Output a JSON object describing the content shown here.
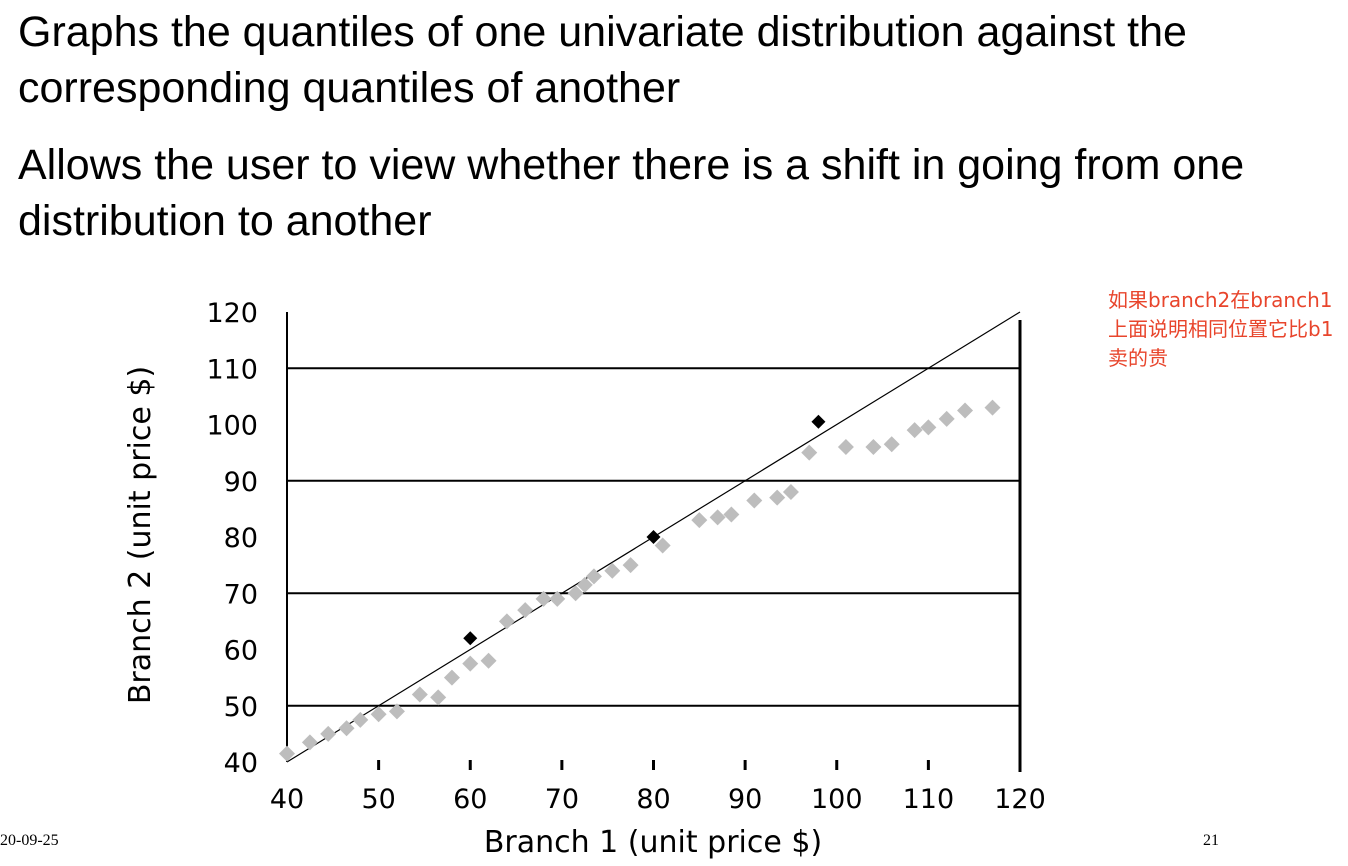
{
  "slide": {
    "bullets": [
      "Graphs the quantiles of one univariate distribution against the corresponding quantiles of another",
      "Allows the user to view whether there is a shift in going from one distribution to another"
    ],
    "annotation": "如果branch2在branch1上面说明相同位置它比b1卖的贵",
    "footer_date": "20-09-25",
    "page_number": "21"
  },
  "chart_data": {
    "type": "scatter",
    "xlabel": "Branch 1 (unit price $)",
    "ylabel": "Branch 2 (unit price $)",
    "xlim": [
      40,
      120
    ],
    "ylim": [
      40,
      120
    ],
    "x_ticks": [
      40,
      50,
      60,
      70,
      80,
      90,
      100,
      110,
      120
    ],
    "y_ticks": [
      40,
      50,
      60,
      70,
      80,
      90,
      100,
      110,
      120
    ],
    "grid": "horizontal",
    "reference_line": {
      "from": [
        40,
        40
      ],
      "to": [
        120,
        120
      ]
    },
    "series": [
      {
        "color": "#bdbdbd",
        "points": [
          [
            40,
            41.5
          ],
          [
            42.5,
            43.5
          ],
          [
            44.5,
            45
          ],
          [
            46.5,
            46
          ],
          [
            48,
            47.5
          ],
          [
            50,
            48.5
          ],
          [
            52,
            49
          ],
          [
            54.5,
            52
          ],
          [
            56.5,
            51.5
          ],
          [
            58,
            55
          ],
          [
            60,
            57.5
          ],
          [
            62,
            58
          ],
          [
            64,
            65
          ],
          [
            66,
            67
          ],
          [
            68,
            69
          ],
          [
            69.5,
            69
          ],
          [
            71.5,
            70
          ],
          [
            72.5,
            71.5
          ],
          [
            73.5,
            73
          ],
          [
            75.5,
            74
          ],
          [
            77.5,
            75
          ],
          [
            81,
            78.5
          ],
          [
            85,
            83
          ],
          [
            87,
            83.5
          ],
          [
            88.5,
            84
          ],
          [
            91,
            86.5
          ],
          [
            93.5,
            87
          ],
          [
            95,
            88
          ],
          [
            97,
            95
          ],
          [
            101,
            96
          ],
          [
            104,
            96
          ],
          [
            106,
            96.5
          ],
          [
            108.5,
            99
          ],
          [
            110,
            99.5
          ],
          [
            112,
            101
          ],
          [
            114,
            102.5
          ],
          [
            117,
            103
          ]
        ]
      },
      {
        "color": "#000000",
        "points": [
          [
            60,
            62
          ],
          [
            80,
            80
          ],
          [
            98,
            100.5
          ]
        ]
      }
    ]
  }
}
